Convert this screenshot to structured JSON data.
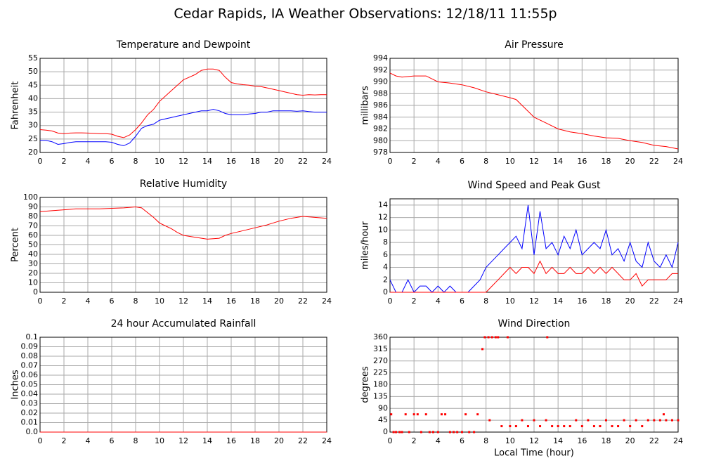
{
  "title": "Cedar Rapids, IA Weather Observations: 12/18/11 11:55p",
  "chart_data": [
    {
      "type": "line",
      "title": "Temperature and Dewpoint",
      "y_label": "Fahrenheit",
      "x": [
        0,
        0.5,
        1,
        1.5,
        2,
        2.5,
        3,
        3.5,
        4,
        4.5,
        5,
        5.5,
        6,
        6.5,
        7,
        7.5,
        8,
        8.5,
        9,
        9.5,
        10,
        10.5,
        11,
        11.5,
        12,
        12.5,
        13,
        13.5,
        14,
        14.5,
        15,
        15.5,
        16,
        16.5,
        17,
        17.5,
        18,
        18.5,
        19,
        19.5,
        20,
        20.5,
        21,
        21.5,
        22,
        22.5,
        23,
        23.5,
        24
      ],
      "series": [
        {
          "color": "#ff0000",
          "values": [
            28.5,
            28.3,
            28,
            27.2,
            27,
            27.2,
            27.3,
            27.3,
            27.2,
            27.1,
            27,
            27,
            26.8,
            26,
            25.5,
            26.5,
            28.5,
            31,
            34,
            36,
            39,
            41,
            43,
            45,
            47,
            48,
            49,
            50.5,
            51,
            51,
            50.5,
            48,
            46,
            45.5,
            45.2,
            45,
            44.6,
            44.5,
            44,
            43.5,
            43,
            42.5,
            42,
            41.5,
            41.3,
            41.5,
            41.4,
            41.5,
            41.5
          ]
        },
        {
          "color": "#0000ff",
          "values": [
            24.5,
            24.5,
            24,
            23,
            23.3,
            23.7,
            24,
            24,
            24,
            24,
            24,
            24,
            23.8,
            23,
            22.5,
            23.5,
            26,
            29,
            30,
            30.5,
            32,
            32.5,
            33,
            33.5,
            34,
            34.5,
            35,
            35.5,
            35.5,
            36,
            35.5,
            34.5,
            34,
            34,
            34,
            34.3,
            34.5,
            35,
            35,
            35.5,
            35.5,
            35.5,
            35.5,
            35.3,
            35.5,
            35.2,
            35,
            35,
            35
          ]
        }
      ],
      "xlim": [
        0,
        24
      ],
      "xticks": [
        0,
        2,
        4,
        6,
        8,
        10,
        12,
        14,
        16,
        18,
        20,
        22,
        24
      ],
      "ylim": [
        20,
        55
      ],
      "yticks": [
        20,
        25,
        30,
        35,
        40,
        45,
        50,
        55
      ],
      "grid": true
    },
    {
      "type": "line",
      "title": "Air Pressure",
      "y_label": "millibars",
      "x": [
        0,
        0.5,
        1,
        2,
        3,
        4,
        5,
        6,
        7,
        8,
        9,
        10,
        10.5,
        11,
        11.5,
        12,
        13,
        14,
        15,
        16,
        17,
        18,
        19,
        20,
        21,
        22,
        23,
        24
      ],
      "series": [
        {
          "color": "#ff0000",
          "values": [
            991.5,
            991,
            990.8,
            991,
            991,
            990,
            989.8,
            989.5,
            989,
            988.3,
            987.8,
            987.3,
            987,
            986,
            985,
            984,
            983,
            982,
            981.5,
            981.2,
            980.8,
            980.5,
            980.4,
            980,
            979.7,
            979.2,
            979,
            978.6
          ]
        }
      ],
      "xlim": [
        0,
        24
      ],
      "xticks": [
        0,
        2,
        4,
        6,
        8,
        10,
        12,
        14,
        16,
        18,
        20,
        22,
        24
      ],
      "ylim": [
        978,
        994
      ],
      "yticks": [
        978,
        980,
        982,
        984,
        986,
        988,
        990,
        992,
        994
      ],
      "grid": true
    },
    {
      "type": "line",
      "title": "Relative Humidity",
      "y_label": "Percent",
      "x": [
        0,
        1,
        2,
        3,
        4,
        5,
        6,
        7,
        8,
        8.5,
        9,
        9.5,
        10,
        10.5,
        11,
        11.5,
        12,
        13,
        14,
        15,
        15.5,
        16,
        17,
        18,
        19,
        20,
        21,
        22,
        23,
        24
      ],
      "series": [
        {
          "color": "#ff0000",
          "values": [
            85,
            86,
            87,
            88,
            88,
            88,
            88.5,
            89,
            90,
            89,
            84,
            79,
            73,
            70,
            67,
            63,
            60,
            58,
            56,
            57,
            60,
            62,
            65,
            68,
            71,
            75,
            78,
            80,
            79,
            78
          ]
        }
      ],
      "xlim": [
        0,
        24
      ],
      "xticks": [
        0,
        2,
        4,
        6,
        8,
        10,
        12,
        14,
        16,
        18,
        20,
        22,
        24
      ],
      "ylim": [
        0,
        100
      ],
      "yticks": [
        0,
        10,
        20,
        30,
        40,
        50,
        60,
        70,
        80,
        90,
        100
      ],
      "grid": true
    },
    {
      "type": "line",
      "title": "Wind Speed and Peak Gust",
      "y_label": "miles/hour",
      "x": [
        0,
        0.5,
        1,
        1.5,
        2,
        2.5,
        3,
        3.5,
        4,
        4.5,
        5,
        5.5,
        6,
        6.5,
        7,
        7.5,
        8,
        8.5,
        9,
        9.5,
        10,
        10.5,
        11,
        11.5,
        12,
        12.5,
        13,
        13.5,
        14,
        14.5,
        15,
        15.5,
        16,
        16.5,
        17,
        17.5,
        18,
        18.5,
        19,
        19.5,
        20,
        20.5,
        21,
        21.5,
        22,
        22.5,
        23,
        23.5,
        24
      ],
      "series": [
        {
          "color": "#0000ff",
          "values": [
            2,
            0,
            0,
            2,
            0,
            1,
            1,
            0,
            1,
            0,
            1,
            0,
            0,
            0,
            1,
            2,
            4,
            5,
            6,
            7,
            8,
            9,
            7,
            14,
            6,
            13,
            7,
            8,
            6,
            9,
            7,
            10,
            6,
            7,
            8,
            7,
            10,
            6,
            7,
            5,
            8,
            5,
            4,
            8,
            5,
            4,
            6,
            4,
            8
          ]
        },
        {
          "color": "#ff0000",
          "values": [
            0,
            0,
            0,
            0,
            0,
            0,
            0,
            0,
            0,
            0,
            0,
            0,
            0,
            0,
            0,
            0,
            0,
            1,
            2,
            3,
            4,
            3,
            4,
            4,
            3,
            5,
            3,
            4,
            3,
            3,
            4,
            3,
            3,
            4,
            3,
            4,
            3,
            4,
            3,
            2,
            2,
            3,
            1,
            2,
            2,
            2,
            2,
            3,
            3
          ]
        }
      ],
      "xlim": [
        0,
        24
      ],
      "xticks": [
        0,
        2,
        4,
        6,
        8,
        10,
        12,
        14,
        16,
        18,
        20,
        22,
        24
      ],
      "ylim": [
        0,
        15
      ],
      "yticks": [
        0,
        2,
        4,
        6,
        8,
        10,
        12,
        14
      ],
      "grid": true
    },
    {
      "type": "line",
      "title": "24 hour Accumulated Rainfall",
      "y_label": "Inches",
      "x": [
        0,
        24
      ],
      "series": [
        {
          "color": "#ff0000",
          "values": [
            0,
            0
          ]
        }
      ],
      "xlim": [
        0,
        24
      ],
      "xticks": [
        0,
        2,
        4,
        6,
        8,
        10,
        12,
        14,
        16,
        18,
        20,
        22,
        24
      ],
      "ylim": [
        0,
        0.1
      ],
      "yticks": [
        {
          "value": 0,
          "label": "0.0"
        },
        0.01,
        0.02,
        0.03,
        0.04,
        0.05,
        0.06,
        0.07,
        0.08,
        0.09,
        0.1
      ],
      "grid": true
    },
    {
      "type": "scatter",
      "title": "Wind Direction",
      "y_label": "degrees",
      "x_label": "Local Time (hour)",
      "x": [
        0.1,
        0.3,
        0.5,
        0.8,
        1,
        1.3,
        1.6,
        2,
        2.3,
        2.6,
        3,
        3.3,
        3.6,
        4,
        4.3,
        4.6,
        5,
        5.3,
        5.6,
        6,
        6.3,
        6.6,
        7,
        7.3,
        7.7,
        7.9,
        8.2,
        8.5,
        8.8,
        9,
        9.8,
        8.3,
        9.3,
        10,
        10.5,
        11,
        11.5,
        12,
        12.5,
        13,
        13.1,
        13.5,
        14,
        14.5,
        15,
        15.5,
        16,
        16.5,
        17,
        17.5,
        18,
        18.5,
        19,
        19.5,
        20,
        20.5,
        21,
        21.5,
        22,
        22.5,
        22.8,
        23,
        23.5,
        24
      ],
      "values": [
        67.5,
        0,
        0,
        0,
        0,
        67.5,
        0,
        67.5,
        67.5,
        0,
        67.5,
        0,
        0,
        0,
        67.5,
        67.5,
        0,
        0,
        0,
        0,
        67.5,
        0,
        0,
        67.5,
        315,
        360,
        360,
        360,
        360,
        360,
        360,
        45,
        22.5,
        22.5,
        22.5,
        45,
        22.5,
        45,
        22.5,
        45,
        360,
        22.5,
        22.5,
        22.5,
        22.5,
        45,
        22.5,
        45,
        22.5,
        22.5,
        45,
        22.5,
        22.5,
        45,
        22.5,
        45,
        22.5,
        45,
        45,
        45,
        67.5,
        45,
        45,
        45
      ],
      "color": "#ff0000",
      "xlim": [
        0,
        24
      ],
      "xticks": [
        0,
        2,
        4,
        6,
        8,
        10,
        12,
        14,
        16,
        18,
        20,
        22,
        24
      ],
      "ylim": [
        0,
        360
      ],
      "yticks": [
        0,
        45,
        90,
        135,
        180,
        225,
        270,
        315,
        360
      ],
      "grid": true
    }
  ]
}
